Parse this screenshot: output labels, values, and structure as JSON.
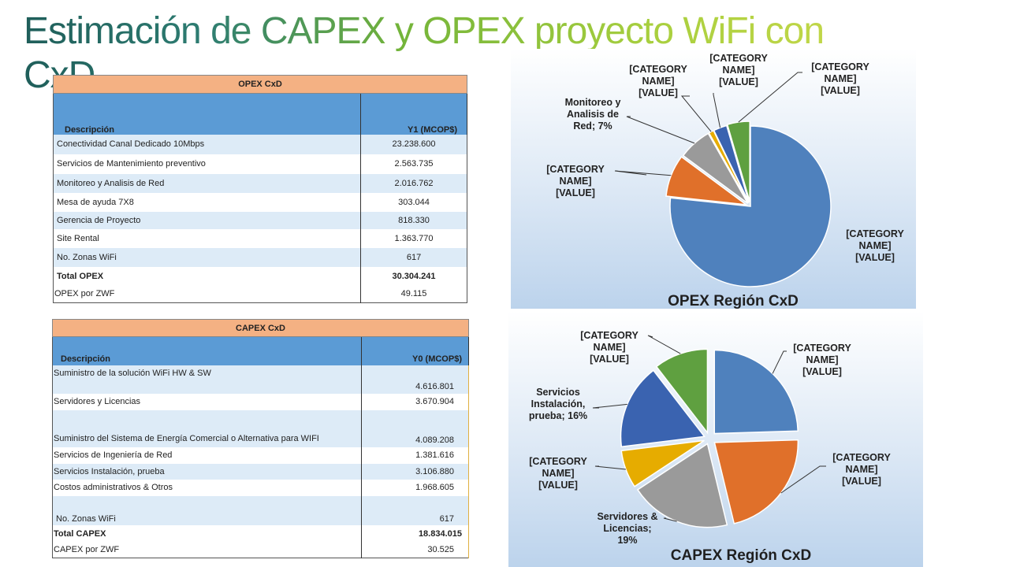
{
  "slide": {
    "title": "Estimación de CAPEX y OPEX proyecto WiFi con CxD"
  },
  "opex_table": {
    "header": "OPEX CxD",
    "col_desc": "Descripción",
    "col_value": "Y1 (MCOP$)",
    "rows": [
      {
        "label": "Conectividad Canal Dedicado 10Mbps",
        "value": "23.238.600"
      },
      {
        "label": "Servicios de Mantenimiento preventivo",
        "value": "2.563.735"
      },
      {
        "label": "Monitoreo y Analisis de Red",
        "value": "2.016.762"
      },
      {
        "label": "Mesa de ayuda 7X8",
        "value": "303.044"
      },
      {
        "label": "Gerencia de Proyecto",
        "value": "818.330"
      },
      {
        "label": "Site Rental",
        "value": "1.363.770"
      },
      {
        "label": "No. Zonas WiFi",
        "value": "617"
      }
    ],
    "total_label": "Total OPEX",
    "total_value": "30.304.241",
    "per_zone_label": "OPEX por ZWF",
    "per_zone_value": "49.115"
  },
  "capex_table": {
    "header": "CAPEX CxD",
    "col_desc": "Descripción",
    "col_value": "Y0 (MCOP$)",
    "rows": [
      {
        "label": "Suministro de la solución WiFi HW & SW",
        "value": "4.616.801"
      },
      {
        "label": "Servidores y Licencias",
        "value": "3.670.904"
      },
      {
        "label": "Suministro del Sistema de Energía Comercial o Alternativa para WIFI",
        "value": "4.089.208"
      },
      {
        "label": "Servicios de Ingeniería de Red",
        "value": "1.381.616"
      },
      {
        "label": "Servicios  Instalación, prueba",
        "value": "3.106.880"
      },
      {
        "label": "Costos administrativos & Otros",
        "value": "1.968.605"
      },
      {
        "label": "No. Zonas WiFi",
        "value": "617"
      }
    ],
    "total_label": "Total CAPEX",
    "total_value": "18.834.015",
    "per_zone_label": "CAPEX  por ZWF",
    "per_zone_value": "30.525"
  },
  "chart_data": [
    {
      "type": "pie",
      "title": "OPEX Región CxD",
      "slices": [
        {
          "value": 23238600,
          "color": "#4f81bd",
          "label_lines": [
            "[CATEGORY",
            "NAME]",
            "[VALUE]"
          ]
        },
        {
          "value": 2563735,
          "color": "#e0702a",
          "label_lines": [
            "[CATEGORY",
            "NAME]",
            "[VALUE]"
          ]
        },
        {
          "value": 2016762,
          "color": "#9a9a9a",
          "label_lines": [
            "Monitoreo y",
            "Analisis de",
            "Red; 7%"
          ]
        },
        {
          "value": 303044,
          "color": "#e6ac00",
          "label_lines": [
            "[CATEGORY",
            "NAME]",
            "[VALUE]"
          ]
        },
        {
          "value": 818330,
          "color": "#3a63b0",
          "label_lines": [
            "[CATEGORY",
            "NAME]",
            "[VALUE]"
          ]
        },
        {
          "value": 1363770,
          "color": "#5fa040",
          "label_lines": [
            "[CATEGORY",
            "NAME]",
            "[VALUE]"
          ]
        }
      ]
    },
    {
      "type": "pie",
      "title": "CAPEX Región CxD",
      "slices": [
        {
          "value": 4616801,
          "color": "#4f81bd",
          "label_lines": [
            "[CATEGORY",
            "NAME]",
            "[VALUE]"
          ]
        },
        {
          "value": 4089208,
          "color": "#e0702a",
          "label_lines": [
            "[CATEGORY",
            "NAME]",
            "[VALUE]"
          ]
        },
        {
          "value": 3670904,
          "color": "#9a9a9a",
          "label_lines": [
            "Servidores &",
            "Licencias;",
            "19%"
          ]
        },
        {
          "value": 1381616,
          "color": "#e6ac00",
          "label_lines": [
            "[CATEGORY",
            "NAME]",
            "[VALUE]"
          ]
        },
        {
          "value": 3106880,
          "color": "#3a63b0",
          "label_lines": [
            "Servicios",
            "Instalación,",
            "prueba; 16%"
          ]
        },
        {
          "value": 1968605,
          "color": "#5fa040",
          "label_lines": [
            "[CATEGORY",
            "NAME]",
            "[VALUE]"
          ]
        }
      ]
    }
  ]
}
